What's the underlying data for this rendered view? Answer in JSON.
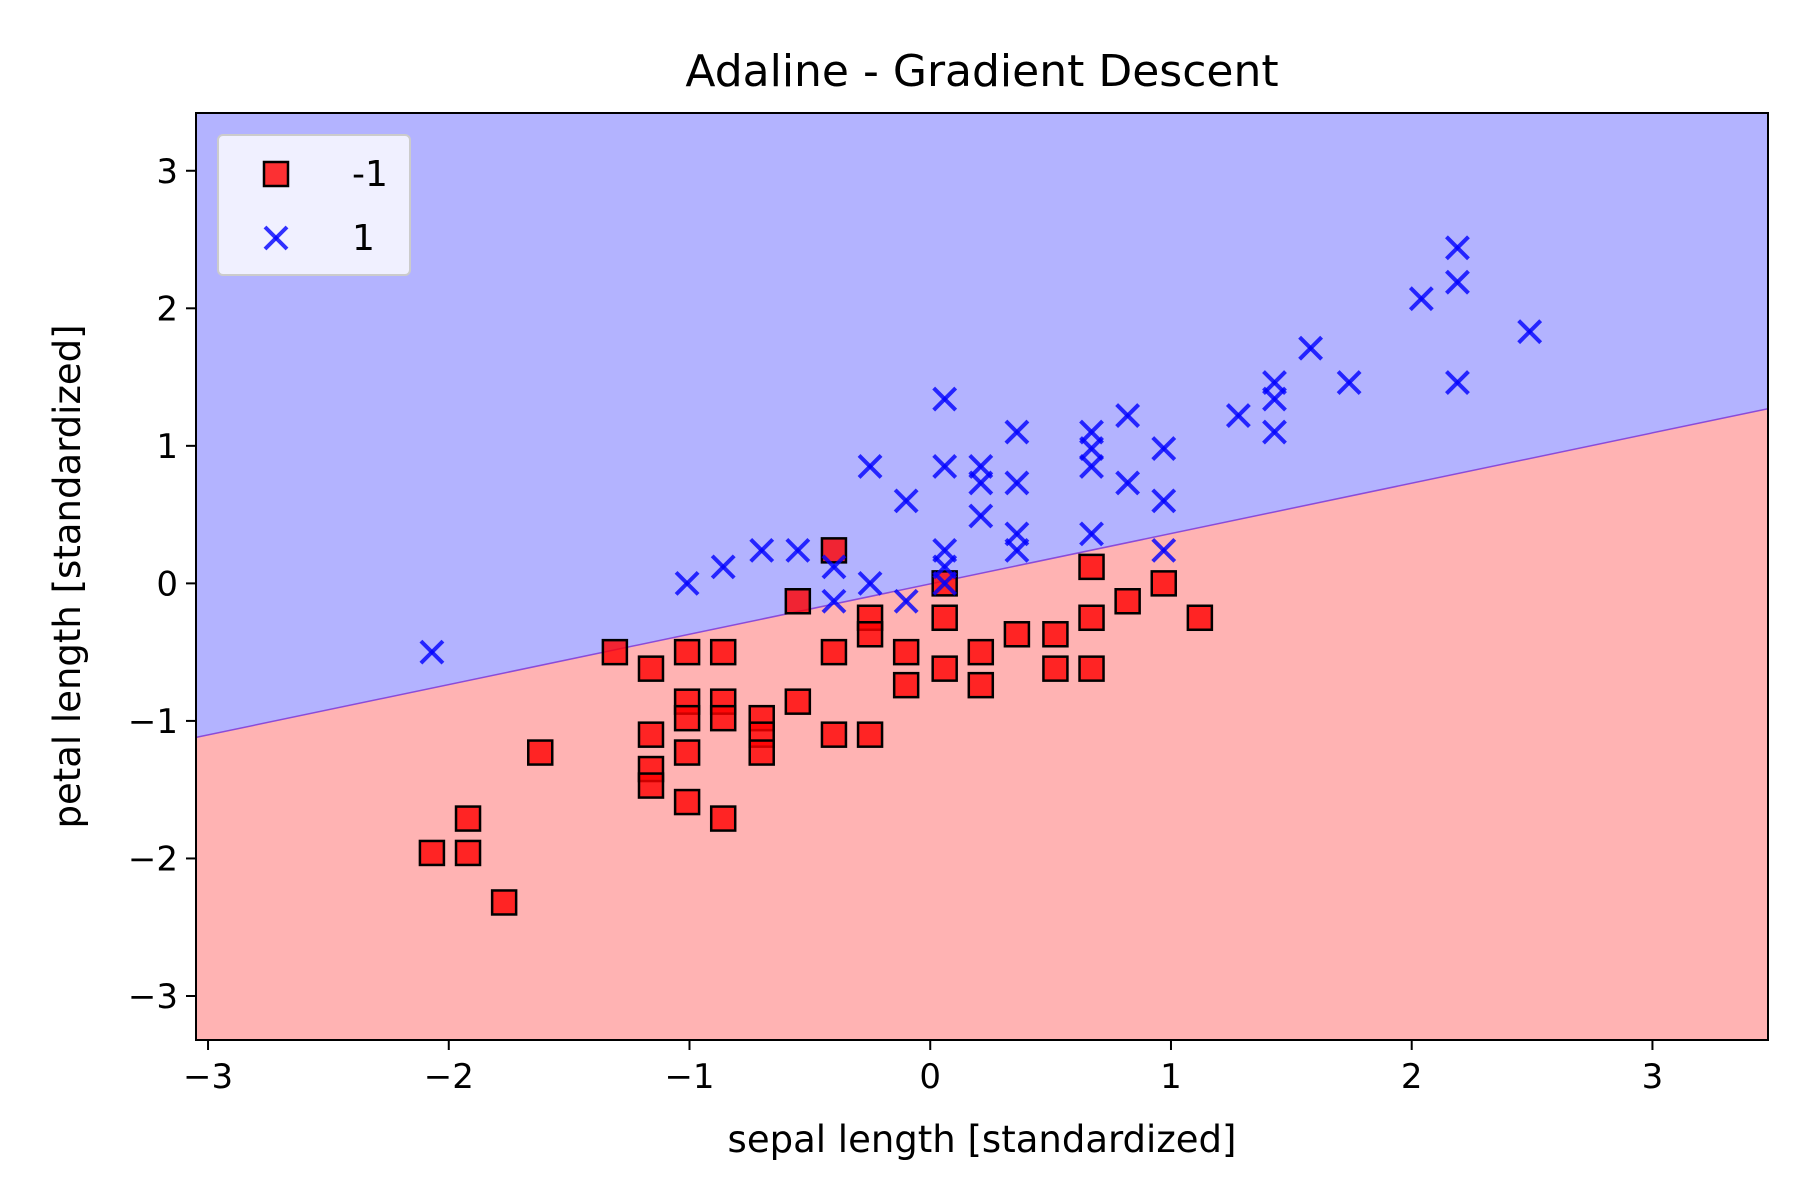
{
  "chart_data": {
    "type": "scatter",
    "title": "Adaline - Gradient Descent",
    "xlabel": "sepal length [standardized]",
    "ylabel": "petal length [standardized]",
    "xlim": [
      -3.05,
      3.48
    ],
    "ylim": [
      -3.32,
      3.42
    ],
    "xticks": [
      -3,
      -2,
      -1,
      0,
      1,
      2,
      3
    ],
    "yticks": [
      -3,
      -2,
      -1,
      0,
      1,
      2,
      3
    ],
    "xtick_labels": [
      "−3",
      "−2",
      "−1",
      "0",
      "1",
      "2",
      "3"
    ],
    "ytick_labels": [
      "−3",
      "−2",
      "−1",
      "0",
      "1",
      "2",
      "3"
    ],
    "grid": false,
    "legend_position": "top-left",
    "decision_boundary": {
      "description_points": [
        [
          -3.05,
          -1.12
        ],
        [
          3.48,
          1.27
        ]
      ],
      "region_above_color": "#b3b3ff",
      "region_below_color": "#ffb3b3"
    },
    "series": [
      {
        "name": "-1",
        "marker": "square",
        "color": "#ff0000",
        "points": [
          [
            -2.07,
            -1.96
          ],
          [
            -1.92,
            -1.96
          ],
          [
            -1.92,
            -1.71
          ],
          [
            -1.77,
            -2.32
          ],
          [
            -1.62,
            -1.23
          ],
          [
            -1.31,
            -0.5
          ],
          [
            -1.16,
            -0.62
          ],
          [
            -1.16,
            -1.1
          ],
          [
            -1.16,
            -1.35
          ],
          [
            -1.16,
            -1.47
          ],
          [
            -1.01,
            -0.5
          ],
          [
            -1.01,
            -0.86
          ],
          [
            -1.01,
            -0.98
          ],
          [
            -1.01,
            -1.23
          ],
          [
            -1.01,
            -1.59
          ],
          [
            -0.86,
            -0.5
          ],
          [
            -0.86,
            -0.86
          ],
          [
            -0.86,
            -0.98
          ],
          [
            -0.86,
            -1.71
          ],
          [
            -0.7,
            -0.98
          ],
          [
            -0.7,
            -1.1
          ],
          [
            -0.7,
            -1.23
          ],
          [
            -0.55,
            -0.13
          ],
          [
            -0.55,
            -0.86
          ],
          [
            -0.4,
            0.24
          ],
          [
            -0.4,
            -0.5
          ],
          [
            -0.4,
            -1.1
          ],
          [
            -0.25,
            -0.25
          ],
          [
            -0.25,
            -0.37
          ],
          [
            -0.25,
            -1.1
          ],
          [
            -0.1,
            -0.5
          ],
          [
            -0.1,
            -0.74
          ],
          [
            0.06,
            0.0
          ],
          [
            0.06,
            -0.25
          ],
          [
            0.06,
            -0.62
          ],
          [
            0.21,
            -0.5
          ],
          [
            0.21,
            -0.74
          ],
          [
            0.36,
            -0.37
          ],
          [
            0.52,
            -0.37
          ],
          [
            0.52,
            -0.62
          ],
          [
            0.67,
            0.12
          ],
          [
            0.67,
            -0.25
          ],
          [
            0.67,
            -0.62
          ],
          [
            0.82,
            -0.13
          ],
          [
            0.97,
            0.0
          ],
          [
            1.12,
            -0.25
          ]
        ]
      },
      {
        "name": "1",
        "marker": "x",
        "color": "#0000ff",
        "points": [
          [
            -2.07,
            -0.5
          ],
          [
            -1.01,
            0.0
          ],
          [
            -0.86,
            0.12
          ],
          [
            -0.7,
            0.24
          ],
          [
            -0.55,
            0.24
          ],
          [
            -0.4,
            0.12
          ],
          [
            -0.4,
            -0.13
          ],
          [
            -0.25,
            0.85
          ],
          [
            -0.25,
            0.0
          ],
          [
            -0.1,
            0.6
          ],
          [
            -0.1,
            -0.13
          ],
          [
            0.06,
            1.34
          ],
          [
            0.06,
            0.85
          ],
          [
            0.06,
            0.24
          ],
          [
            0.06,
            0.12
          ],
          [
            0.06,
            0.0
          ],
          [
            0.21,
            0.85
          ],
          [
            0.21,
            0.73
          ],
          [
            0.21,
            0.49
          ],
          [
            0.36,
            1.1
          ],
          [
            0.36,
            0.73
          ],
          [
            0.36,
            0.36
          ],
          [
            0.36,
            0.24
          ],
          [
            0.67,
            1.1
          ],
          [
            0.67,
            0.98
          ],
          [
            0.67,
            0.85
          ],
          [
            0.67,
            0.36
          ],
          [
            0.82,
            1.22
          ],
          [
            0.82,
            0.73
          ],
          [
            0.97,
            0.98
          ],
          [
            0.97,
            0.6
          ],
          [
            0.97,
            0.24
          ],
          [
            1.28,
            1.22
          ],
          [
            1.43,
            1.46
          ],
          [
            1.43,
            1.34
          ],
          [
            1.43,
            1.1
          ],
          [
            1.58,
            1.71
          ],
          [
            1.74,
            1.46
          ],
          [
            2.04,
            2.07
          ],
          [
            2.19,
            2.44
          ],
          [
            2.19,
            2.19
          ],
          [
            2.19,
            1.46
          ],
          [
            2.49,
            1.83
          ]
        ]
      }
    ]
  }
}
